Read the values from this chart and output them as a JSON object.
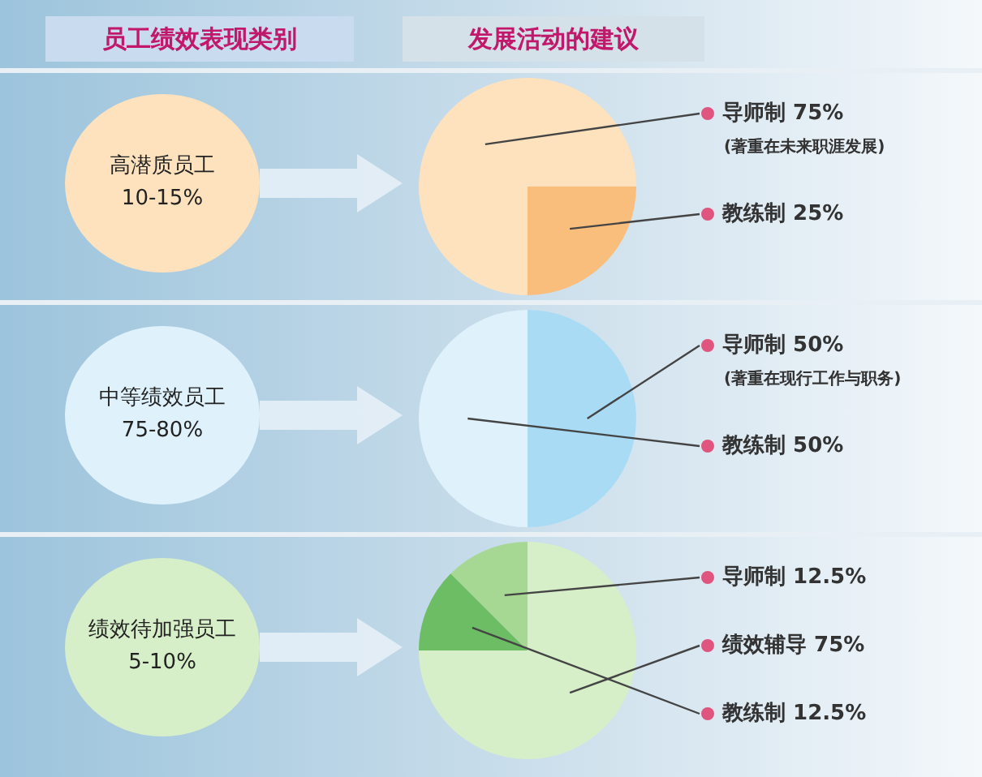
{
  "chart_data": [
    {
      "type": "other",
      "title": "员工绩效表现类别",
      "annotations": [
        "高潜质员工\n10-15%",
        "中等绩效员工\n75-80%",
        "绩效待加强员工\n5-10%"
      ]
    },
    {
      "type": "pie",
      "title": "发展活动的建议",
      "categories": [
        "导师制",
        "教练制"
      ],
      "values": [
        75,
        25
      ],
      "value_labels": [
        "75%",
        "25%"
      ],
      "colors": [
        "#fde2bd",
        "#f9bd7c"
      ],
      "annotations": [
        "(著重在未来职涯发展)"
      ],
      "legend": false
    },
    {
      "type": "pie",
      "categories": [
        "导师制",
        "教练制"
      ],
      "values": [
        50,
        50
      ],
      "value_labels": [
        "50%",
        "50%"
      ],
      "colors": [
        "#a9dcf4",
        "#dff2fb"
      ],
      "annotations": [
        "(著重在现行工作与职务)"
      ],
      "legend": false
    },
    {
      "type": "pie",
      "categories": [
        "导师制",
        "绩效辅导",
        "教练制"
      ],
      "values": [
        12.5,
        75,
        12.5
      ],
      "value_labels": [
        "12.5%",
        "75%",
        "12.5%"
      ],
      "colors": [
        "#a6d893",
        "#d6efc8",
        "#6cbd63"
      ],
      "legend": false
    }
  ]
}
